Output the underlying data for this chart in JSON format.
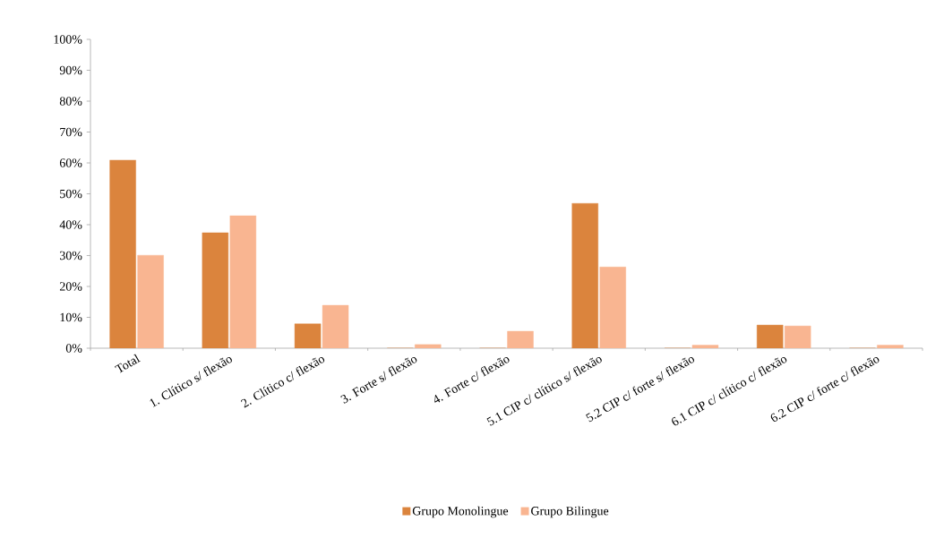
{
  "chart_data": {
    "type": "bar",
    "categories": [
      "Total",
      "1. Clítico s/ flexão",
      "2. Clítico c/ flexão",
      "3. Forte s/ flexão",
      "4. Forte c/ flexão",
      "5.1 CIP c/ clítico s/ flexão",
      "5.2 CIP c/ forte s/ flexão",
      "6.1 CIP c/ clítico c/ flexão",
      "6.2 CIP c/ forte c/ flexão"
    ],
    "series": [
      {
        "name": "Grupo Monolingue",
        "color": "#db843d",
        "values": [
          60.9,
          37.4,
          7.9,
          0,
          0,
          46.9,
          0,
          7.5,
          0
        ]
      },
      {
        "name": "Grupo Bilingue",
        "color": "#f9b591",
        "values": [
          30.1,
          42.9,
          13.9,
          1.2,
          5.5,
          26.3,
          1.0,
          7.2,
          1.0
        ]
      }
    ],
    "ylim": [
      0,
      100
    ],
    "yticks": [
      {
        "value": 0,
        "label": "0%"
      },
      {
        "value": 10,
        "label": "10%"
      },
      {
        "value": 20,
        "label": "20%"
      },
      {
        "value": 30,
        "label": "30%"
      },
      {
        "value": 40,
        "label": "40%"
      },
      {
        "value": 50,
        "label": "50%"
      },
      {
        "value": 60,
        "label": "60%"
      },
      {
        "value": 70,
        "label": "70%"
      },
      {
        "value": 80,
        "label": "80%"
      },
      {
        "value": 90,
        "label": "90%"
      },
      {
        "value": 100,
        "label": "100%"
      }
    ],
    "grid": false,
    "legend": "bottom"
  }
}
